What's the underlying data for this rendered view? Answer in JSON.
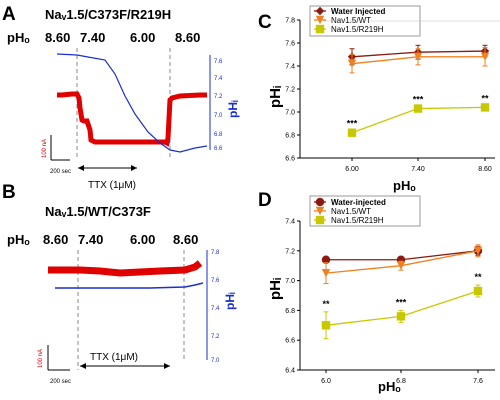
{
  "panels": {
    "A": {
      "letter": "A",
      "title": "Naᵥ1.5/C373F/R219H",
      "ph_label": "pHₒ",
      "ph_steps": [
        "8.60",
        "7.40",
        "6.00",
        "8.60"
      ],
      "right_axis_label": "pHᵢ",
      "right_ticks": [
        "7.6",
        "7.4",
        "7.2",
        "7.0",
        "6.8",
        "6.6"
      ],
      "scalebar_amplitude": "100 nA",
      "scalebar_time": "200 sec",
      "ttx_label": "TTX (1μM)"
    },
    "B": {
      "letter": "B",
      "title": "Naᵥ1.5/WT/C373F",
      "ph_label": "pHₒ",
      "ph_steps": [
        "8.60",
        "7.40",
        "6.00",
        "8.60"
      ],
      "right_axis_label": "pHᵢ",
      "right_ticks": [
        "7.8",
        "7.6",
        "7.4",
        "7.2",
        "7.0"
      ],
      "scalebar_amplitude": "100 nA",
      "scalebar_time": "200 sec",
      "ttx_label": "TTX (1μM)"
    },
    "C": {
      "letter": "C",
      "ylabel": "pHᵢ",
      "xlabel": "pHₒ"
    },
    "D": {
      "letter": "D",
      "ylabel": "pHᵢ",
      "xlabel": "pHₒ"
    }
  },
  "colors": {
    "water": "#8b1a10",
    "wt": "#f08020",
    "r219h": "#c8c800",
    "trace_red": "#e00000",
    "trace_blue": "#1a2fd0"
  },
  "chart_data": [
    {
      "panel": "C",
      "type": "line",
      "x": [
        6.0,
        7.4,
        8.6
      ],
      "x_tick_labels": [
        "6.00",
        "7.40",
        "8.60"
      ],
      "ylim": [
        6.6,
        7.8
      ],
      "y_ticks": [
        6.6,
        6.8,
        7.0,
        7.2,
        7.4,
        7.6,
        7.8
      ],
      "y_tick_labels": [
        "6.6",
        "6.8",
        "7.0",
        "7.2",
        "7.4",
        "7.6",
        "7.8"
      ],
      "legend": "top",
      "series": [
        {
          "name": "Water Injected",
          "color_key": "water",
          "marker": "diamond",
          "values": [
            7.48,
            7.52,
            7.53
          ],
          "errors": [
            0.07,
            0.06,
            0.05
          ],
          "significance": [
            "",
            "",
            ""
          ]
        },
        {
          "name": "Nav1.5/WT",
          "color_key": "wt",
          "marker": "triangle-down",
          "values": [
            7.42,
            7.48,
            7.48
          ],
          "errors": [
            0.08,
            0.07,
            0.08
          ],
          "significance": [
            "",
            "",
            ""
          ]
        },
        {
          "name": "Nav1.5/R219H",
          "color_key": "r219h",
          "marker": "square",
          "values": [
            6.82,
            7.03,
            7.04
          ],
          "errors": [
            0.01,
            0.01,
            0.01
          ],
          "significance": [
            "***",
            "***",
            "**"
          ]
        }
      ]
    },
    {
      "panel": "D",
      "type": "line",
      "x": [
        6.0,
        6.8,
        7.6
      ],
      "x_tick_labels": [
        "6.0",
        "6.8",
        "7.6"
      ],
      "ylim": [
        6.4,
        7.4
      ],
      "y_ticks": [
        6.4,
        6.6,
        6.8,
        7.0,
        7.2,
        7.4
      ],
      "y_tick_labels": [
        "6.4",
        "6.6",
        "6.8",
        "7.0",
        "7.2",
        "7.4"
      ],
      "legend": "top",
      "series": [
        {
          "name": "Water-injected",
          "color_key": "water",
          "marker": "circle",
          "values": [
            7.14,
            7.14,
            7.2
          ],
          "errors": [
            0.01,
            0.01,
            0.03
          ],
          "significance": [
            "",
            "",
            ""
          ]
        },
        {
          "name": "Nav1.5/WT",
          "color_key": "wt",
          "marker": "triangle-down",
          "values": [
            7.05,
            7.1,
            7.2
          ],
          "errors": [
            0.07,
            0.03,
            0.04
          ],
          "significance": [
            "",
            "",
            ""
          ]
        },
        {
          "name": "Nav1.5/R219H",
          "color_key": "r219h",
          "marker": "square",
          "values": [
            6.7,
            6.76,
            6.93
          ],
          "errors": [
            0.09,
            0.04,
            0.04
          ],
          "significance": [
            "**",
            "***",
            "**"
          ]
        }
      ]
    }
  ]
}
